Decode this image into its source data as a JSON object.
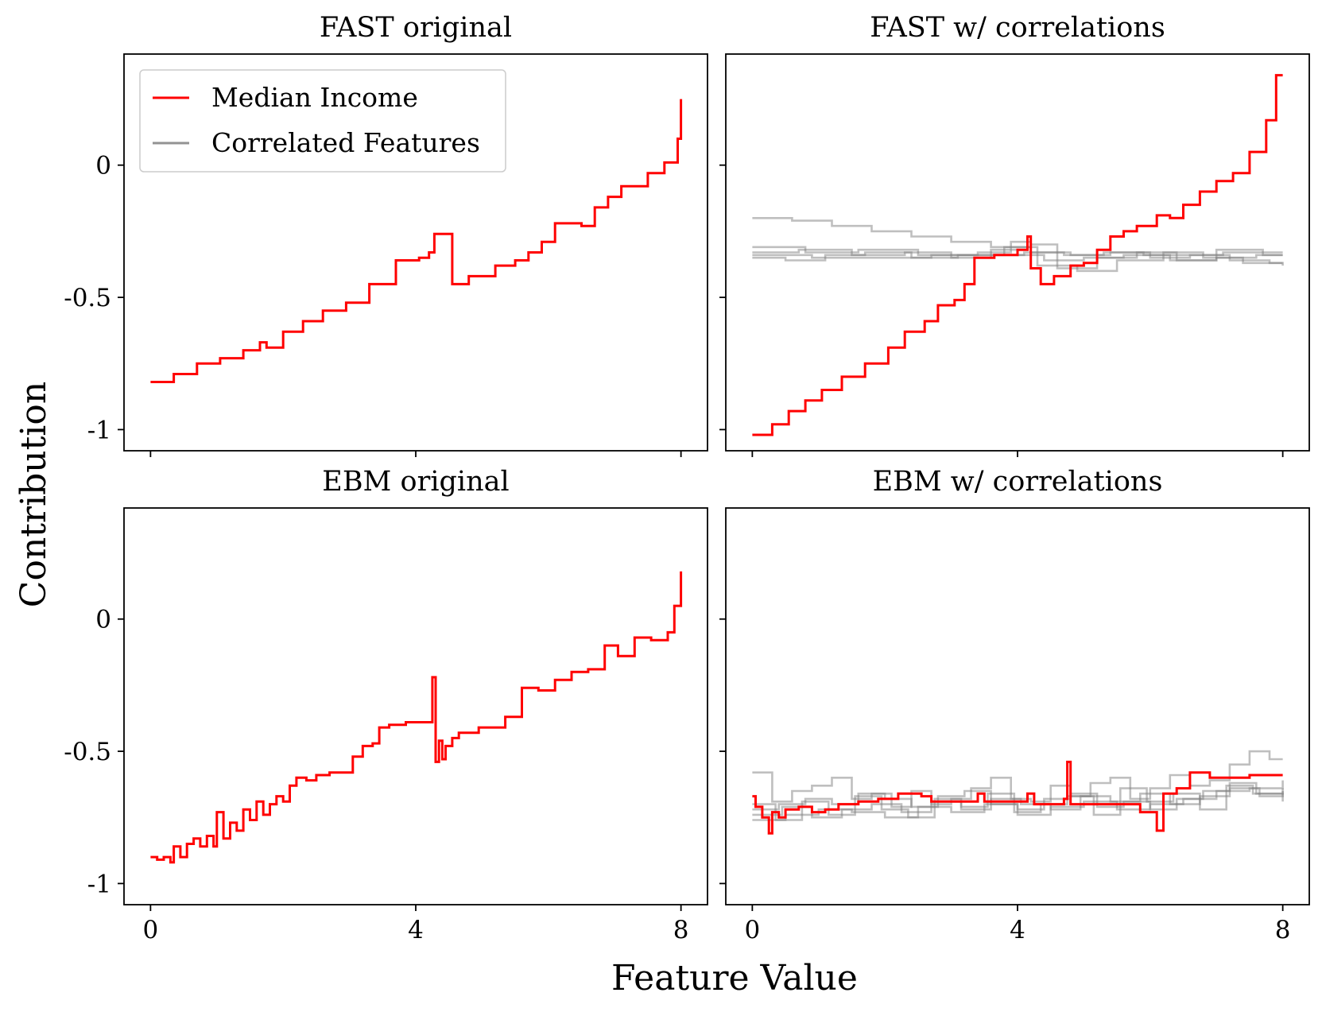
{
  "figure": {
    "xlabel": "Feature Value",
    "ylabel": "Contribution",
    "colors": {
      "main": "#ff0000",
      "correlated": "#808080"
    },
    "legend": {
      "location": "upper-left",
      "panel": 0,
      "entries": [
        {
          "label": "Median Income",
          "color": "#ff0000",
          "opacity": 1.0
        },
        {
          "label": "Correlated Features",
          "color": "#808080",
          "opacity": 0.85
        }
      ]
    }
  },
  "chart_data": [
    {
      "type": "line",
      "title": "FAST original",
      "xlim": [
        -0.4,
        8.4
      ],
      "ylim": [
        -1.08,
        0.42
      ],
      "xticks": [
        0,
        4,
        8
      ],
      "xtick_labels_visible": false,
      "yticks": [
        0,
        -0.5,
        -1
      ],
      "ytick_labels": [
        "0",
        "-0.5",
        "-1"
      ],
      "ytick_labels_visible": true,
      "series": [
        {
          "name": "Median Income",
          "role": "main",
          "x": [
            0,
            0.35,
            0.7,
            1.05,
            1.4,
            1.65,
            1.75,
            2.0,
            2.3,
            2.6,
            2.95,
            3.3,
            3.7,
            4.05,
            4.2,
            4.28,
            4.55,
            4.8,
            5.2,
            5.5,
            5.7,
            5.9,
            6.1,
            6.5,
            6.7,
            6.9,
            7.1,
            7.5,
            7.75,
            7.95,
            8.0
          ],
          "y": [
            -0.82,
            -0.79,
            -0.75,
            -0.73,
            -0.7,
            -0.67,
            -0.69,
            -0.63,
            -0.59,
            -0.55,
            -0.52,
            -0.45,
            -0.36,
            -0.35,
            -0.33,
            -0.26,
            -0.45,
            -0.42,
            -0.38,
            -0.36,
            -0.33,
            -0.29,
            -0.22,
            -0.23,
            -0.16,
            -0.12,
            -0.08,
            -0.03,
            0.01,
            0.1,
            0.25
          ]
        }
      ]
    },
    {
      "type": "line",
      "title": "FAST w/ correlations",
      "xlim": [
        -0.4,
        8.4
      ],
      "ylim": [
        -1.08,
        0.42
      ],
      "xticks": [
        0,
        4,
        8
      ],
      "xtick_labels_visible": false,
      "yticks": [
        0,
        -0.5,
        -1
      ],
      "ytick_labels_visible": false,
      "series": [
        {
          "name": "Median Income",
          "role": "main",
          "x": [
            0,
            0.3,
            0.55,
            0.8,
            1.05,
            1.35,
            1.7,
            2.05,
            2.3,
            2.6,
            2.8,
            3.05,
            3.2,
            3.35,
            3.65,
            4.0,
            4.15,
            4.2,
            4.35,
            4.55,
            4.8,
            5.0,
            5.2,
            5.4,
            5.6,
            5.8,
            6.1,
            6.3,
            6.5,
            6.75,
            7.0,
            7.25,
            7.5,
            7.75,
            7.9,
            8.0
          ],
          "y": [
            -1.02,
            -0.98,
            -0.93,
            -0.89,
            -0.85,
            -0.8,
            -0.75,
            -0.69,
            -0.63,
            -0.59,
            -0.53,
            -0.51,
            -0.45,
            -0.35,
            -0.34,
            -0.32,
            -0.27,
            -0.39,
            -0.45,
            -0.42,
            -0.38,
            -0.37,
            -0.32,
            -0.27,
            -0.25,
            -0.23,
            -0.19,
            -0.2,
            -0.15,
            -0.1,
            -0.06,
            -0.03,
            0.05,
            0.17,
            0.34,
            0.34
          ]
        },
        {
          "name": "",
          "role": "correlated",
          "x": [
            0,
            0.6,
            1.2,
            1.8,
            2.4,
            3.0,
            3.6,
            4.2,
            4.8,
            5.4,
            6.0,
            6.6,
            7.2,
            7.8,
            8.0
          ],
          "y": [
            -0.2,
            -0.21,
            -0.23,
            -0.25,
            -0.27,
            -0.29,
            -0.31,
            -0.33,
            -0.34,
            -0.33,
            -0.35,
            -0.34,
            -0.36,
            -0.37,
            -0.37
          ]
        },
        {
          "name": "",
          "role": "correlated",
          "x": [
            0,
            0.7,
            1.5,
            2.3,
            3.0,
            3.6,
            4.0,
            4.4,
            5.0,
            5.6,
            6.3,
            7.0,
            7.6,
            8.0
          ],
          "y": [
            -0.33,
            -0.32,
            -0.34,
            -0.33,
            -0.35,
            -0.32,
            -0.34,
            -0.36,
            -0.35,
            -0.34,
            -0.36,
            -0.35,
            -0.34,
            -0.34
          ]
        },
        {
          "name": "",
          "role": "correlated",
          "x": [
            0,
            0.5,
            1.1,
            1.7,
            2.4,
            3.1,
            3.8,
            4.3,
            4.9,
            5.5,
            6.2,
            6.8,
            7.4,
            8.0
          ],
          "y": [
            -0.35,
            -0.36,
            -0.34,
            -0.33,
            -0.35,
            -0.34,
            -0.31,
            -0.38,
            -0.4,
            -0.36,
            -0.33,
            -0.35,
            -0.37,
            -0.38
          ]
        },
        {
          "name": "",
          "role": "correlated",
          "x": [
            0,
            0.8,
            1.6,
            2.5,
            3.4,
            3.9,
            4.2,
            4.6,
            5.2,
            5.8,
            6.4,
            7.0,
            7.7,
            8.0
          ],
          "y": [
            -0.31,
            -0.33,
            -0.32,
            -0.34,
            -0.33,
            -0.29,
            -0.3,
            -0.39,
            -0.35,
            -0.33,
            -0.36,
            -0.32,
            -0.34,
            -0.34
          ]
        },
        {
          "name": "",
          "role": "correlated",
          "x": [
            0,
            0.9,
            1.8,
            2.7,
            3.5,
            4.1,
            4.7,
            5.3,
            5.9,
            6.5,
            7.1,
            7.8,
            8.0
          ],
          "y": [
            -0.34,
            -0.35,
            -0.35,
            -0.34,
            -0.34,
            -0.33,
            -0.34,
            -0.33,
            -0.34,
            -0.34,
            -0.33,
            -0.33,
            -0.33
          ]
        }
      ]
    },
    {
      "type": "line",
      "title": "EBM original",
      "xlim": [
        -0.4,
        8.4
      ],
      "ylim": [
        -1.08,
        0.42
      ],
      "xticks": [
        0,
        4,
        8
      ],
      "xtick_labels": [
        "0",
        "4",
        "8"
      ],
      "xtick_labels_visible": true,
      "yticks": [
        0,
        -0.5,
        -1
      ],
      "ytick_labels": [
        "0",
        "-0.5",
        "-1"
      ],
      "ytick_labels_visible": true,
      "series": [
        {
          "name": "Median Income",
          "role": "main",
          "x": [
            0,
            0.1,
            0.2,
            0.3,
            0.35,
            0.45,
            0.55,
            0.65,
            0.75,
            0.85,
            0.95,
            1.0,
            1.1,
            1.2,
            1.3,
            1.4,
            1.5,
            1.6,
            1.7,
            1.8,
            1.9,
            2.0,
            2.1,
            2.2,
            2.35,
            2.5,
            2.7,
            2.95,
            3.05,
            3.2,
            3.35,
            3.45,
            3.6,
            3.85,
            4.0,
            4.25,
            4.3,
            4.35,
            4.4,
            4.45,
            4.55,
            4.65,
            4.95,
            5.35,
            5.6,
            5.85,
            6.1,
            6.35,
            6.6,
            6.85,
            7.05,
            7.3,
            7.55,
            7.8,
            7.9,
            8.0
          ],
          "y": [
            -0.9,
            -0.91,
            -0.9,
            -0.92,
            -0.86,
            -0.9,
            -0.85,
            -0.83,
            -0.86,
            -0.82,
            -0.86,
            -0.73,
            -0.83,
            -0.77,
            -0.8,
            -0.72,
            -0.76,
            -0.69,
            -0.74,
            -0.7,
            -0.67,
            -0.69,
            -0.63,
            -0.6,
            -0.61,
            -0.59,
            -0.58,
            -0.58,
            -0.52,
            -0.48,
            -0.47,
            -0.41,
            -0.4,
            -0.39,
            -0.39,
            -0.22,
            -0.54,
            -0.46,
            -0.53,
            -0.48,
            -0.45,
            -0.43,
            -0.41,
            -0.37,
            -0.26,
            -0.27,
            -0.23,
            -0.2,
            -0.19,
            -0.1,
            -0.14,
            -0.07,
            -0.08,
            -0.05,
            0.05,
            0.18
          ]
        }
      ]
    },
    {
      "type": "line",
      "title": "EBM w/ correlations",
      "xlim": [
        -0.4,
        8.4
      ],
      "ylim": [
        -1.08,
        0.42
      ],
      "xticks": [
        0,
        4,
        8
      ],
      "xtick_labels": [
        "0",
        "4",
        "8"
      ],
      "xtick_labels_visible": true,
      "yticks": [
        0,
        -0.5,
        -1
      ],
      "ytick_labels_visible": false,
      "series": [
        {
          "name": "Median Income",
          "role": "main",
          "x": [
            0,
            0.05,
            0.15,
            0.25,
            0.3,
            0.4,
            0.5,
            0.7,
            0.9,
            1.1,
            1.3,
            1.6,
            1.9,
            2.2,
            2.55,
            2.7,
            3.0,
            3.4,
            3.5,
            3.75,
            4.0,
            4.15,
            4.25,
            4.5,
            4.7,
            4.75,
            4.8,
            5.0,
            5.4,
            5.6,
            5.85,
            6.0,
            6.1,
            6.2,
            6.4,
            6.6,
            6.9,
            7.2,
            7.5,
            8.0
          ],
          "y": [
            -0.67,
            -0.71,
            -0.75,
            -0.81,
            -0.73,
            -0.75,
            -0.72,
            -0.71,
            -0.73,
            -0.72,
            -0.7,
            -0.69,
            -0.68,
            -0.66,
            -0.67,
            -0.69,
            -0.69,
            -0.66,
            -0.69,
            -0.69,
            -0.69,
            -0.66,
            -0.7,
            -0.7,
            -0.68,
            -0.54,
            -0.7,
            -0.7,
            -0.7,
            -0.7,
            -0.73,
            -0.73,
            -0.8,
            -0.66,
            -0.64,
            -0.58,
            -0.6,
            -0.6,
            -0.59,
            -0.59
          ]
        },
        {
          "name": "",
          "role": "correlated",
          "x": [
            0,
            0.3,
            0.6,
            0.9,
            1.2,
            1.5,
            1.8,
            2.1,
            2.4,
            2.7,
            3.0,
            3.3,
            3.6,
            3.9,
            4.2,
            4.5,
            4.8,
            5.1,
            5.4,
            5.7,
            6.0,
            6.3,
            6.6,
            6.9,
            7.2,
            7.5,
            7.8,
            8.0
          ],
          "y": [
            -0.58,
            -0.69,
            -0.65,
            -0.63,
            -0.6,
            -0.68,
            -0.66,
            -0.71,
            -0.65,
            -0.7,
            -0.68,
            -0.64,
            -0.6,
            -0.68,
            -0.69,
            -0.63,
            -0.67,
            -0.62,
            -0.6,
            -0.68,
            -0.64,
            -0.59,
            -0.63,
            -0.61,
            -0.55,
            -0.5,
            -0.53,
            -0.53
          ]
        },
        {
          "name": "",
          "role": "correlated",
          "x": [
            0,
            0.4,
            0.8,
            1.2,
            1.6,
            2.0,
            2.4,
            2.8,
            3.2,
            3.6,
            4.0,
            4.4,
            4.8,
            5.2,
            5.6,
            6.0,
            6.4,
            6.8,
            7.2,
            7.6,
            8.0
          ],
          "y": [
            -0.72,
            -0.7,
            -0.68,
            -0.7,
            -0.66,
            -0.68,
            -0.71,
            -0.67,
            -0.65,
            -0.7,
            -0.72,
            -0.68,
            -0.66,
            -0.71,
            -0.69,
            -0.72,
            -0.68,
            -0.65,
            -0.62,
            -0.66,
            -0.69
          ]
        },
        {
          "name": "",
          "role": "correlated",
          "x": [
            0,
            0.5,
            1.0,
            1.5,
            2.0,
            2.5,
            3.0,
            3.5,
            4.0,
            4.5,
            5.0,
            5.5,
            6.0,
            6.5,
            7.0,
            7.5,
            8.0
          ],
          "y": [
            -0.76,
            -0.74,
            -0.72,
            -0.73,
            -0.75,
            -0.71,
            -0.73,
            -0.7,
            -0.74,
            -0.71,
            -0.69,
            -0.72,
            -0.7,
            -0.68,
            -0.65,
            -0.64,
            -0.61
          ]
        },
        {
          "name": "",
          "role": "correlated",
          "x": [
            0,
            0.35,
            0.75,
            1.15,
            1.55,
            1.95,
            2.35,
            2.75,
            3.15,
            3.55,
            3.95,
            4.35,
            4.75,
            5.15,
            5.55,
            5.95,
            6.35,
            6.75,
            7.15,
            7.55,
            8.0
          ],
          "y": [
            -0.7,
            -0.76,
            -0.69,
            -0.74,
            -0.67,
            -0.72,
            -0.75,
            -0.68,
            -0.71,
            -0.66,
            -0.73,
            -0.7,
            -0.67,
            -0.74,
            -0.64,
            -0.69,
            -0.66,
            -0.72,
            -0.63,
            -0.66,
            -0.64
          ]
        },
        {
          "name": "",
          "role": "correlated",
          "x": [
            0,
            0.45,
            0.9,
            1.35,
            1.8,
            2.25,
            2.7,
            3.15,
            3.6,
            4.05,
            4.5,
            4.95,
            5.4,
            5.85,
            6.3,
            6.75,
            7.2,
            7.65,
            8.0
          ],
          "y": [
            -0.74,
            -0.71,
            -0.75,
            -0.72,
            -0.7,
            -0.73,
            -0.69,
            -0.72,
            -0.68,
            -0.7,
            -0.72,
            -0.67,
            -0.69,
            -0.66,
            -0.7,
            -0.67,
            -0.64,
            -0.67,
            -0.65
          ]
        }
      ]
    }
  ]
}
